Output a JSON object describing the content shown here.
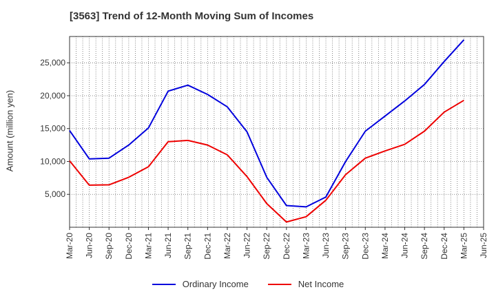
{
  "title": "[3563]  Trend of 12-Month Moving Sum of Incomes",
  "colors": {
    "ordinary": "#0000dd",
    "net": "#ee0000",
    "grid": "#666666",
    "axis": "#333333"
  },
  "chart_data": {
    "type": "line",
    "title": "[3563]  Trend of 12-Month Moving Sum of Incomes",
    "xlabel": "",
    "ylabel": "Amount (million yen)",
    "x": [
      "Mar-20",
      "Jun-20",
      "Sep-20",
      "Dec-20",
      "Mar-21",
      "Jun-21",
      "Sep-21",
      "Dec-21",
      "Mar-22",
      "Jun-22",
      "Sep-22",
      "Dec-22",
      "Mar-23",
      "Jun-23",
      "Sep-23",
      "Dec-23",
      "Mar-24",
      "Jun-24",
      "Sep-24",
      "Dec-24",
      "Mar-25",
      "Jun-25"
    ],
    "ylim": [
      0,
      29000
    ],
    "yticks": [
      5000,
      10000,
      15000,
      20000,
      25000
    ],
    "ytick_labels": [
      "5,000",
      "10,000",
      "15,000",
      "20,000",
      "25,000"
    ],
    "grid": true,
    "legend_position": "bottom",
    "series": [
      {
        "name": "Ordinary Income",
        "color": "#0000dd",
        "values": [
          14700,
          10400,
          10500,
          12500,
          15100,
          20700,
          21600,
          20200,
          18300,
          14500,
          7600,
          3300,
          3100,
          4600,
          10000,
          14600,
          16900,
          19200,
          21700,
          25200,
          28500,
          null
        ]
      },
      {
        "name": "Net Income",
        "color": "#ee0000",
        "values": [
          10100,
          6400,
          6450,
          7600,
          9200,
          13000,
          13200,
          12500,
          11000,
          7700,
          3600,
          800,
          1600,
          4100,
          8000,
          10500,
          11600,
          12600,
          14600,
          17500,
          19300,
          null
        ]
      }
    ]
  }
}
